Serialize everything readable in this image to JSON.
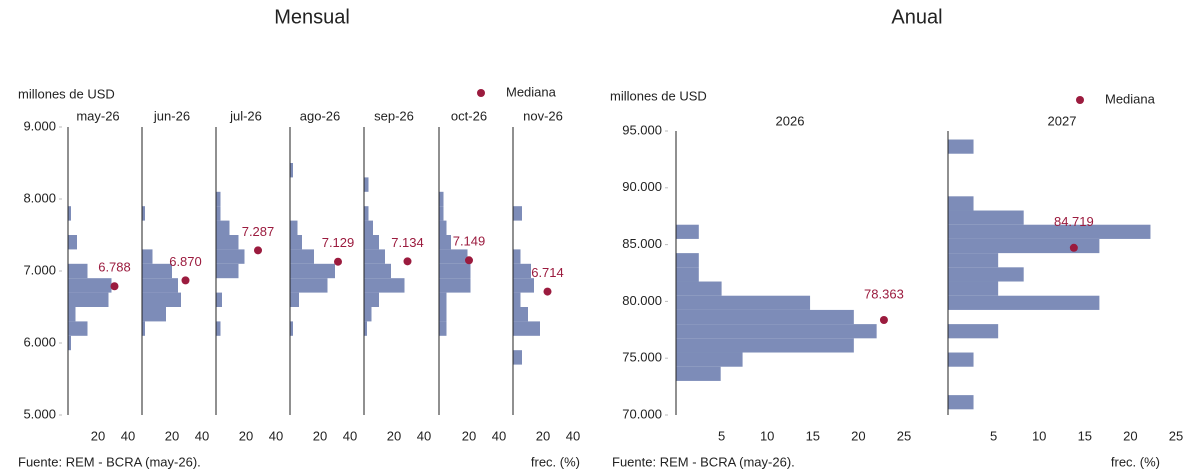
{
  "chart_data": [
    {
      "type": "histogram",
      "title": "Mensual",
      "y_label": "millones de USD",
      "x_label": "frec. (%)",
      "source": "Fuente: REM - BCRA (may-26).",
      "median_name": "Mediana",
      "bar_color": "#7d8cb8",
      "median_color": "#9b1b3e",
      "ylim": [
        5000,
        9000
      ],
      "yticks": [
        {
          "value": 5000,
          "label": "5.000"
        },
        {
          "value": 6000,
          "label": "6.000"
        },
        {
          "value": 7000,
          "label": "7.000"
        },
        {
          "value": 8000,
          "label": "8.000"
        },
        {
          "value": 9000,
          "label": "9.000"
        }
      ],
      "xlim": [
        0,
        40
      ],
      "xticks": [
        20,
        40
      ],
      "panels": [
        {
          "name": "may-26",
          "bins": [
            5700,
            5900,
            6100,
            6300,
            6500,
            6700,
            6900,
            7100,
            7300,
            7500,
            7700,
            7900,
            8100,
            8300,
            8500
          ],
          "values": [
            0,
            2,
            13,
            5,
            27,
            29,
            13,
            0,
            6,
            0,
            2,
            0,
            0,
            0
          ],
          "median": {
            "value": 6788,
            "label": "6.788",
            "x": 31
          }
        },
        {
          "name": "jun-26",
          "bins": [
            5700,
            5900,
            6100,
            6300,
            6500,
            6700,
            6900,
            7100,
            7300,
            7500,
            7700,
            7900,
            8100,
            8300,
            8500
          ],
          "values": [
            0,
            0,
            2,
            16,
            26,
            24,
            20,
            7,
            0,
            0,
            2,
            0,
            0,
            0
          ],
          "median": {
            "value": 6870,
            "label": "6.870",
            "x": 29
          }
        },
        {
          "name": "jul-26",
          "bins": [
            5700,
            5900,
            6100,
            6300,
            6500,
            6700,
            6900,
            7100,
            7300,
            7500,
            7700,
            7900,
            8100,
            8300,
            8500
          ],
          "values": [
            0,
            0,
            3,
            0,
            4,
            0,
            15,
            19,
            15,
            9,
            3,
            3,
            0,
            0
          ],
          "median": {
            "value": 7287,
            "label": "7.287",
            "x": 28
          }
        },
        {
          "name": "ago-26",
          "bins": [
            5700,
            5900,
            6100,
            6300,
            6500,
            6700,
            6900,
            7100,
            7300,
            7500,
            7700,
            7900,
            8100,
            8300,
            8500
          ],
          "values": [
            0,
            0,
            2,
            0,
            6,
            25,
            30,
            16,
            8,
            5,
            0,
            0,
            0,
            2
          ],
          "median": {
            "value": 7129,
            "label": "7.129",
            "x": 32
          }
        },
        {
          "name": "sep-26",
          "bins": [
            5700,
            5900,
            6100,
            6300,
            6500,
            6700,
            6900,
            7100,
            7300,
            7500,
            7700,
            7900,
            8100,
            8300,
            8500
          ],
          "values": [
            0,
            0,
            2,
            5,
            10,
            27,
            18,
            14,
            10,
            6,
            3,
            0,
            3,
            0
          ],
          "median": {
            "value": 7134,
            "label": "7.134",
            "x": 29
          }
        },
        {
          "name": "oct-26",
          "bins": [
            5700,
            5900,
            6100,
            6300,
            6500,
            6700,
            6900,
            7100,
            7300,
            7500,
            7700,
            7900,
            8100,
            8300,
            8500
          ],
          "values": [
            0,
            0,
            5,
            5,
            5,
            21,
            21,
            19,
            8,
            5,
            3,
            3,
            0,
            0
          ],
          "median": {
            "value": 7149,
            "label": "7.149",
            "x": 20
          }
        },
        {
          "name": "nov-26",
          "bins": [
            5700,
            5900,
            6100,
            6300,
            6500,
            6700,
            6900,
            7100,
            7300,
            7500,
            7700,
            7900,
            8100,
            8300,
            8500
          ],
          "values": [
            6,
            0,
            18,
            10,
            5,
            14,
            12,
            5,
            0,
            0,
            6,
            0,
            0,
            0
          ],
          "median": {
            "value": 6714,
            "label": "6.714",
            "x": 23
          }
        }
      ]
    },
    {
      "type": "histogram",
      "title": "Anual",
      "y_label": "millones de USD",
      "x_label": "frec. (%)",
      "source": "Fuente: REM - BCRA (may-26).",
      "median_name": "Mediana",
      "bar_color": "#7d8cb8",
      "median_color": "#9b1b3e",
      "ylim": [
        70000,
        95000
      ],
      "yticks": [
        {
          "value": 70000,
          "label": "70.000"
        },
        {
          "value": 75000,
          "label": "75.000"
        },
        {
          "value": 80000,
          "label": "80.000"
        },
        {
          "value": 85000,
          "label": "85.000"
        },
        {
          "value": 90000,
          "label": "90.000"
        },
        {
          "value": 95000,
          "label": "95.000"
        }
      ],
      "xlim": [
        0,
        25
      ],
      "xticks": [
        5,
        10,
        15,
        20,
        25
      ],
      "panels": [
        {
          "name": "2026",
          "bins": [
            73000,
            74250,
            75500,
            76750,
            78000,
            79250,
            80500,
            81750,
            83000,
            84250,
            85500,
            86750
          ],
          "values": [
            4.9,
            7.3,
            19.5,
            22,
            19.5,
            14.7,
            5,
            2.5,
            2.5,
            0,
            2.5
          ],
          "median": {
            "value": 78363,
            "label": "78.363",
            "x": 22.8
          }
        },
        {
          "name": "2027",
          "bins": [
            70500,
            71750,
            73000,
            74250,
            75500,
            76750,
            78000,
            79250,
            80500,
            81750,
            83000,
            84250,
            85500,
            86750,
            88000,
            89250,
            90500,
            91750,
            93000,
            94250
          ],
          "values": [
            2.8,
            0,
            0,
            2.8,
            0,
            5.5,
            0,
            16.6,
            5.5,
            8.3,
            5.5,
            16.6,
            22.2,
            8.3,
            2.8,
            0,
            0,
            0,
            2.8
          ],
          "median": {
            "value": 84719,
            "label": "84.719",
            "x": 13.8
          }
        }
      ]
    }
  ]
}
